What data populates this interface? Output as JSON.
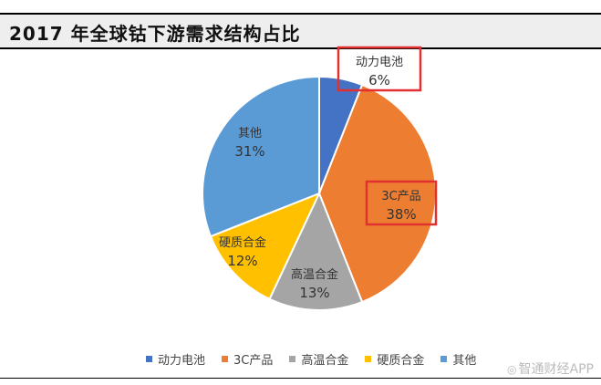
{
  "title": "2017 年全球钴下游需求结构占比",
  "chart_data": {
    "type": "pie",
    "slices": [
      {
        "label": "动力电池",
        "value": 6,
        "pct_text": "6%",
        "color": "#4472c4"
      },
      {
        "label": "3C产品",
        "value": 38,
        "pct_text": "38%",
        "color": "#ed7d31"
      },
      {
        "label": "高温合金",
        "value": 13,
        "pct_text": "13%",
        "color": "#a5a5a5"
      },
      {
        "label": "硬质合金",
        "value": 12,
        "pct_text": "12%",
        "color": "#ffc000"
      },
      {
        "label": "其他",
        "value": 31,
        "pct_text": "31%",
        "color": "#5b9bd5"
      }
    ],
    "start": "12 o'clock, clockwise",
    "legend_position": "bottom",
    "highlighted": [
      "动力电池",
      "3C产品"
    ],
    "highlight_color": "#e03030"
  },
  "legend": [
    "动力电池",
    "3C产品",
    "高温合金",
    "硬质合金",
    "其他"
  ],
  "watermark": "智通财经APP"
}
